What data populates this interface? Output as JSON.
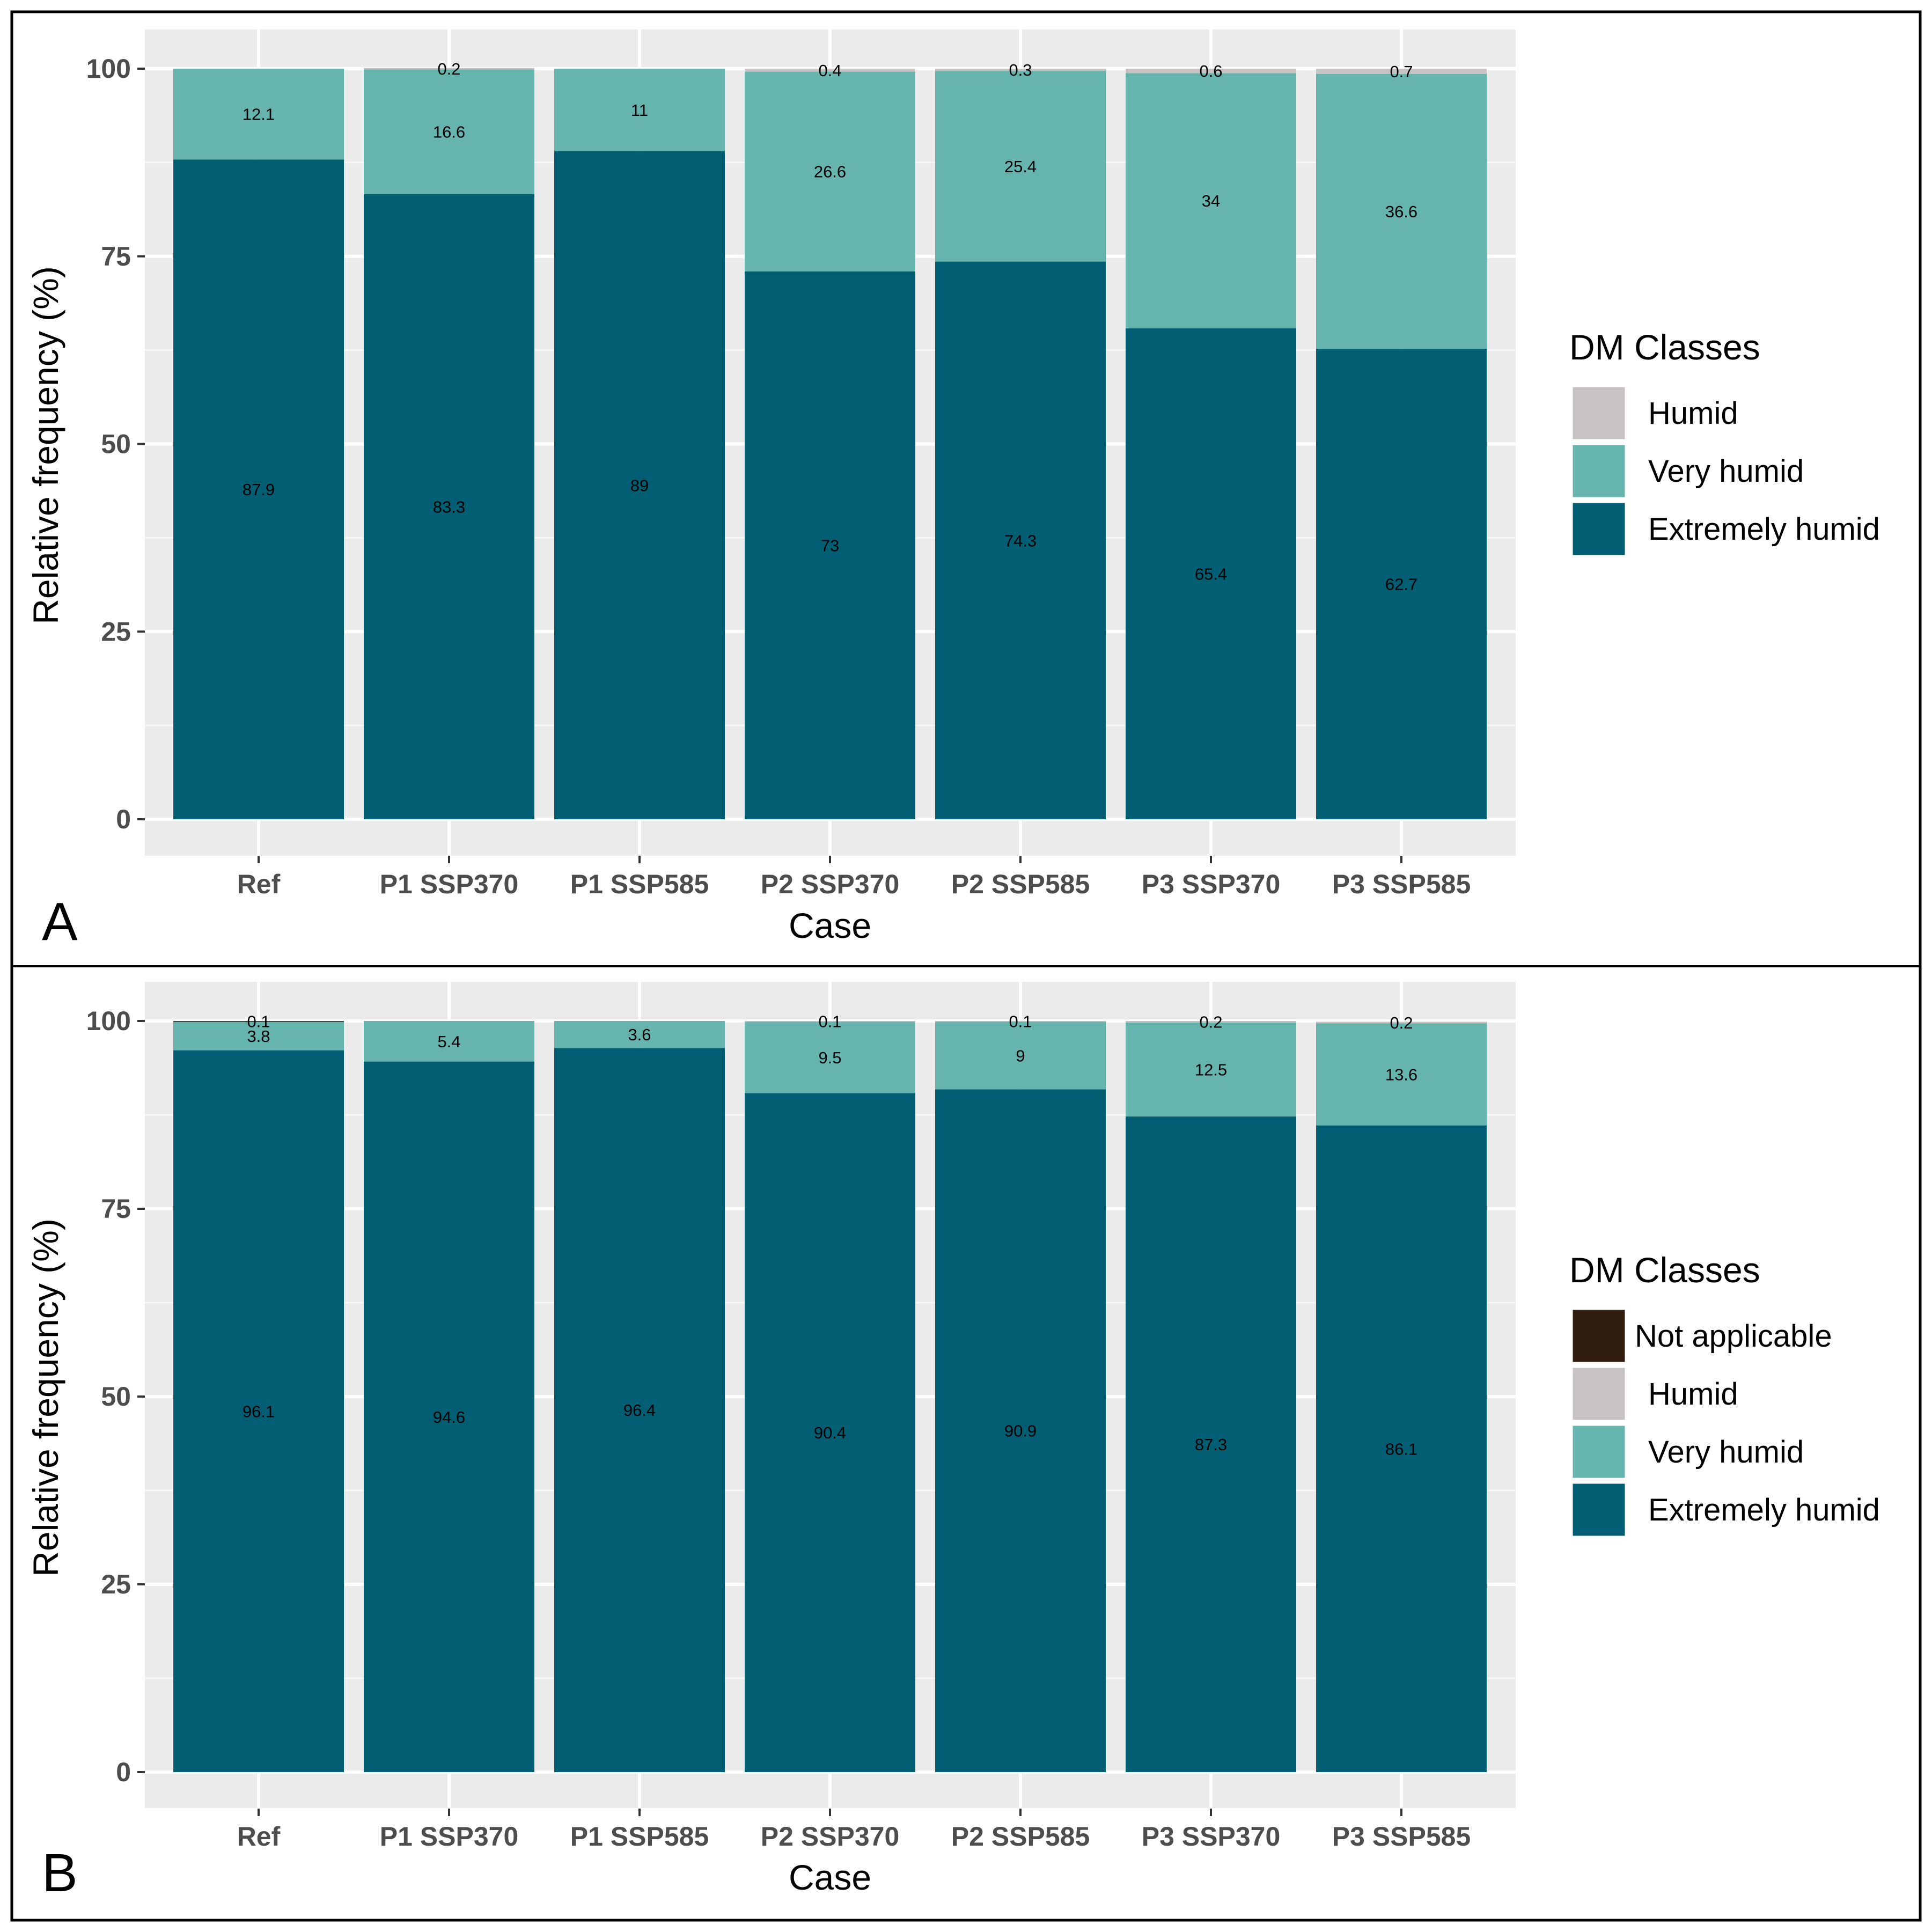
{
  "chart_data": [
    {
      "type": "bar",
      "stacked": true,
      "panel_label": "A",
      "title": "",
      "xlabel": "Case",
      "ylabel": "Relative frequency (%)",
      "ylim": [
        0,
        100
      ],
      "yticks": [
        0,
        25,
        50,
        75,
        100
      ],
      "grid": true,
      "legend_position": "right",
      "legend_title": "DM Classes",
      "legend": [
        {
          "name": "Humid",
          "color": "#c8c3c3"
        },
        {
          "name": "Very humid",
          "color": "#65b5ae"
        },
        {
          "name": "Extremely humid",
          "color": "#015e73"
        }
      ],
      "categories": [
        "Ref",
        "P1 SSP370",
        "P1 SSP585",
        "P2 SSP370",
        "P2 SSP585",
        "P3 SSP370",
        "P3 SSP585"
      ],
      "series": [
        {
          "name": "Extremely humid",
          "color": "#015e73",
          "values": [
            87.9,
            83.3,
            89,
            73,
            74.3,
            65.4,
            62.7
          ],
          "labels": [
            "87.9",
            "83.3",
            "89",
            "73",
            "74.3",
            "65.4",
            "62.7"
          ]
        },
        {
          "name": "Very humid",
          "color": "#65b5ae",
          "values": [
            12.1,
            16.6,
            11,
            26.6,
            25.4,
            34,
            36.6
          ],
          "labels": [
            "12.1",
            "16.6",
            "11",
            "26.6",
            "25.4",
            "34",
            "36.6"
          ]
        },
        {
          "name": "Humid",
          "color": "#c8c3c3",
          "values": [
            0,
            0.2,
            0,
            0.4,
            0.3,
            0.6,
            0.7
          ],
          "labels": [
            null,
            "0.2",
            null,
            "0.4",
            "0.3",
            "0.6",
            "0.7"
          ]
        }
      ]
    },
    {
      "type": "bar",
      "stacked": true,
      "panel_label": "B",
      "title": "",
      "xlabel": "Case",
      "ylabel": "Relative frequency (%)",
      "ylim": [
        0,
        100
      ],
      "yticks": [
        0,
        25,
        50,
        75,
        100
      ],
      "grid": true,
      "legend_position": "right",
      "legend_title": "DM Classes",
      "legend": [
        {
          "name": "Not applicable",
          "color": "#311d0f"
        },
        {
          "name": "Humid",
          "color": "#c8c3c3"
        },
        {
          "name": "Very humid",
          "color": "#65b5ae"
        },
        {
          "name": "Extremely humid",
          "color": "#015e73"
        }
      ],
      "categories": [
        "Ref",
        "P1 SSP370",
        "P1 SSP585",
        "P2 SSP370",
        "P2 SSP585",
        "P3 SSP370",
        "P3 SSP585"
      ],
      "series": [
        {
          "name": "Extremely humid",
          "color": "#015e73",
          "values": [
            96.1,
            94.6,
            96.4,
            90.4,
            90.9,
            87.3,
            86.1
          ],
          "labels": [
            "96.1",
            "94.6",
            "96.4",
            "90.4",
            "90.9",
            "87.3",
            "86.1"
          ]
        },
        {
          "name": "Very humid",
          "color": "#65b5ae",
          "values": [
            3.8,
            5.4,
            3.6,
            9.5,
            9,
            12.5,
            13.6
          ],
          "labels": [
            "3.8",
            "5.4",
            "3.6",
            "9.5",
            "9",
            "12.5",
            "13.6"
          ]
        },
        {
          "name": "Humid",
          "color": "#c8c3c3",
          "values": [
            0,
            0,
            0,
            0.1,
            0.1,
            0.2,
            0.2
          ],
          "labels": [
            null,
            null,
            null,
            "0.1",
            "0.1",
            "0.2",
            "0.2"
          ]
        },
        {
          "name": "Not applicable",
          "color": "#311d0f",
          "values": [
            0.1,
            0,
            0,
            0,
            0,
            0,
            0
          ],
          "labels": [
            "0.1",
            null,
            null,
            null,
            null,
            null,
            null
          ]
        }
      ]
    }
  ]
}
